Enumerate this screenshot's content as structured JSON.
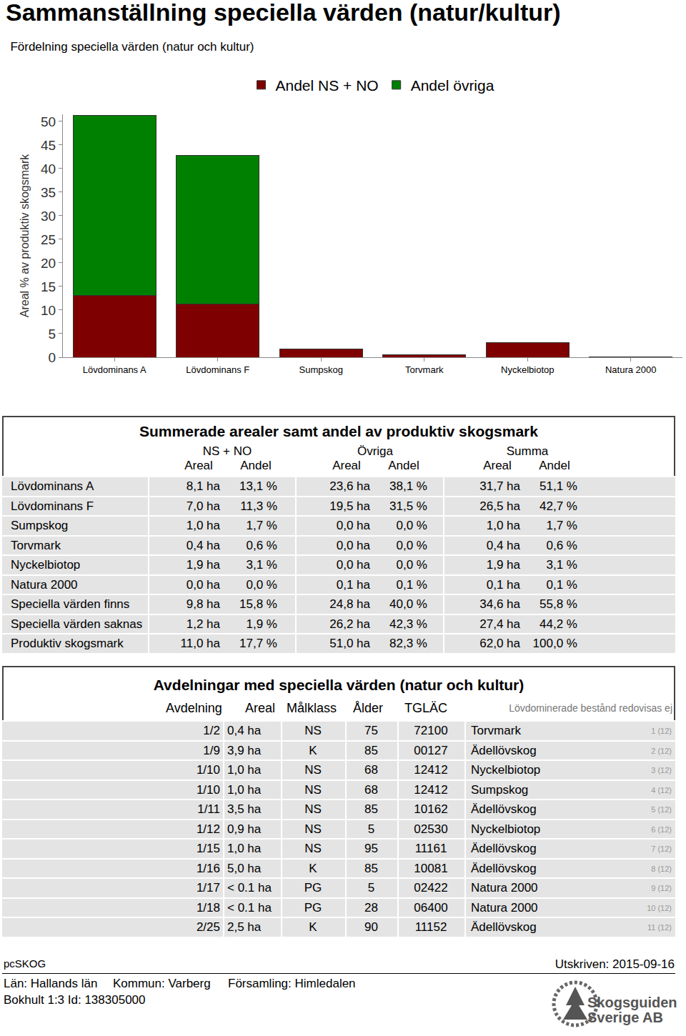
{
  "header": {
    "title": "Sammanställning speciella värden (natur/kultur)"
  },
  "chart_data": {
    "type": "bar",
    "title": "Fördelning speciella värden (natur och kultur)",
    "y_label": "Areal % av produktiv skogsmark",
    "categories": [
      "Lövdominans A",
      "Lövdominans F",
      "Sumpskog",
      "Torvmark",
      "Nyckelbiotop",
      "Natura 2000"
    ],
    "series": [
      {
        "name": "Andel NS + NO",
        "color": "#7f0000",
        "values": [
          13.1,
          11.3,
          1.7,
          0.6,
          3.1,
          0.0
        ]
      },
      {
        "name": "Andel övriga",
        "color": "#008000",
        "values": [
          38.1,
          31.5,
          0.0,
          0.0,
          0.0,
          0.1
        ]
      }
    ],
    "stacked": true,
    "ylim": [
      0,
      51.5
    ],
    "yticks": [
      0,
      5,
      10,
      15,
      20,
      25,
      30,
      35,
      40,
      45,
      50
    ],
    "grid": false,
    "legend": "top"
  },
  "summary_table": {
    "title": "Summerade arealer samt andel av produktiv skogsmark",
    "groups": [
      "NS + NO",
      "Övriga",
      "Summa"
    ],
    "columns": [
      "Areal",
      "Andel",
      "Areal",
      "Andel",
      "Areal",
      "Andel"
    ],
    "rows": [
      [
        "Lövdominans A",
        "8,1 ha",
        "13,1 %",
        "23,6 ha",
        "38,1 %",
        "31,7 ha",
        "51,1 %"
      ],
      [
        "Lövdominans F",
        "7,0 ha",
        "11,3 %",
        "19,5 ha",
        "31,5 %",
        "26,5 ha",
        "42,7 %"
      ],
      [
        "Sumpskog",
        "1,0 ha",
        "1,7 %",
        "0,0 ha",
        "0,0 %",
        "1,0 ha",
        "1,7 %"
      ],
      [
        "Torvmark",
        "0,4 ha",
        "0,6 %",
        "0,0 ha",
        "0,0 %",
        "0,4 ha",
        "0,6 %"
      ],
      [
        "Nyckelbiotop",
        "1,9 ha",
        "3,1 %",
        "0,0 ha",
        "0,0 %",
        "1,9 ha",
        "3,1 %"
      ],
      [
        "Natura 2000",
        "0,0 ha",
        "0,0 %",
        "0,1 ha",
        "0,1 %",
        "0,1 ha",
        "0,1 %"
      ],
      [
        "Speciella värden finns",
        "9,8 ha",
        "15,8 %",
        "24,8 ha",
        "40,0 %",
        "34,6 ha",
        "55,8 %"
      ],
      [
        "Speciella värden saknas",
        "1,2 ha",
        "1,9 %",
        "26,2 ha",
        "42,3 %",
        "27,4 ha",
        "44,2 %"
      ],
      [
        "Produktiv skogsmark",
        "11,0 ha",
        "17,7 %",
        "51,0 ha",
        "82,3 %",
        "62,0 ha",
        "100,0 %"
      ]
    ]
  },
  "divisions_table": {
    "title": "Avdelningar med speciella värden (natur och kultur)",
    "columns": [
      "Avdelning",
      "Areal",
      "Målklass",
      "Ålder",
      "TGLÄC"
    ],
    "note": "Lövdominerade bestånd redovisas ej",
    "rows": [
      [
        "1/2",
        "0,4 ha",
        "NS",
        "75",
        "72100",
        "Torvmark",
        "1 (12)"
      ],
      [
        "1/9",
        "3,9 ha",
        "K",
        "85",
        "00127",
        "Ädellövskog",
        "2 (12)"
      ],
      [
        "1/10",
        "1,0 ha",
        "NS",
        "68",
        "12412",
        "Nyckelbiotop",
        "3 (12)"
      ],
      [
        "1/10",
        "1,0 ha",
        "NS",
        "68",
        "12412",
        "Sumpskog",
        "4 (12)"
      ],
      [
        "1/11",
        "3,5 ha",
        "NS",
        "85",
        "10162",
        "Ädellövskog",
        "5 (12)"
      ],
      [
        "1/12",
        "0,9 ha",
        "NS",
        "5",
        "02530",
        "Nyckelbiotop",
        "6 (12)"
      ],
      [
        "1/15",
        "1,0 ha",
        "NS",
        "95",
        "11161",
        "Ädellövskog",
        "7 (12)"
      ],
      [
        "1/16",
        "5,0 ha",
        "K",
        "85",
        "10081",
        "Ädellövskog",
        "8 (12)"
      ],
      [
        "1/17",
        "< 0.1 ha",
        "PG",
        "5",
        "02422",
        "Natura 2000",
        "9 (12)"
      ],
      [
        "1/18",
        "< 0.1 ha",
        "PG",
        "28",
        "06400",
        "Natura 2000",
        "10 (12)"
      ],
      [
        "2/25",
        "2,5 ha",
        "K",
        "90",
        "11152",
        "Ädellövskog",
        "11 (12)"
      ]
    ]
  },
  "footer": {
    "program": "pcSKOG",
    "printed": "Utskriven: 2015-09-16",
    "location": [
      "Län: Hallands län",
      "Kommun: Varberg",
      "Församling: Himledalen"
    ],
    "property": "Bokhult 1:3 Id: 138305000",
    "logo": [
      "Skogsguiden",
      "Sverige AB"
    ]
  }
}
